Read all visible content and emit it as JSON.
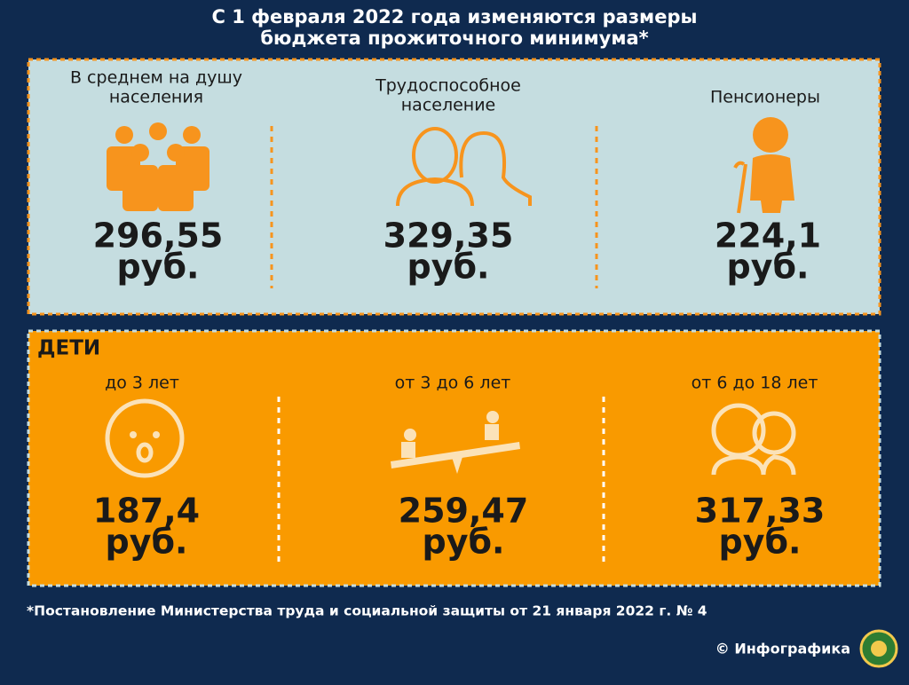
{
  "header": {
    "title_lines": [
      "С 1 февраля 2022 года изменяются размеры",
      "бюджета прожиточного минимума*"
    ]
  },
  "adults": {
    "items": [
      {
        "label_lines": [
          "В среднем на душу",
          "населения"
        ],
        "amount": "296,55",
        "unit": "руб."
      },
      {
        "label_lines": [
          "Трудоспособное",
          "население"
        ],
        "amount": "329,35",
        "unit": "руб."
      },
      {
        "label_lines": [
          "Пенсионеры"
        ],
        "amount": "224,1",
        "unit": "руб."
      }
    ]
  },
  "children": {
    "title": "ДЕТИ",
    "items": [
      {
        "label": "до 3 лет",
        "amount": "187,4",
        "unit": "руб."
      },
      {
        "label": "от 3 до 6 лет",
        "amount": "259,47",
        "unit": "руб."
      },
      {
        "label": "от 6 до 18 лет",
        "amount": "317,33",
        "unit": "руб."
      }
    ]
  },
  "footnote": "*Постановление Министерства труда и социальной защиты от 21 января 2022 г. № 4",
  "credit": "© Инфографика"
}
